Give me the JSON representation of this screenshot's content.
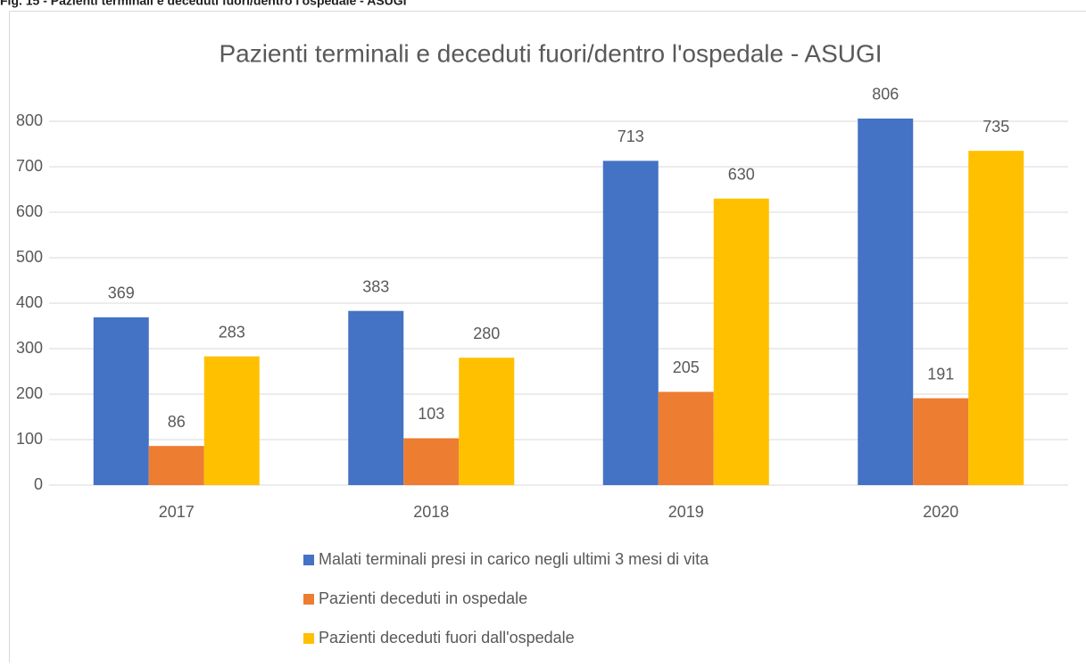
{
  "caption": "Fig. 15 - Pazienti terminali e deceduti fuori/dentro l'ospedale - ASUGI",
  "chart_data": {
    "type": "bar",
    "title": "Pazienti terminali e deceduti fuori/dentro l'ospedale - ASUGI",
    "categories": [
      "2017",
      "2018",
      "2019",
      "2020"
    ],
    "series": [
      {
        "name": "Malati terminali presi in carico negli ultimi 3 mesi di vita",
        "color": "#4472c4",
        "values": [
          369,
          383,
          713,
          806
        ]
      },
      {
        "name": "Pazienti deceduti in ospedale",
        "color": "#ed7d31",
        "values": [
          86,
          103,
          205,
          191
        ]
      },
      {
        "name": "Pazienti deceduti fuori dall'ospedale",
        "color": "#ffc000",
        "values": [
          283,
          280,
          630,
          735
        ]
      }
    ],
    "ylim": [
      0,
      800
    ],
    "yticks": [
      0,
      100,
      200,
      300,
      400,
      500,
      600,
      700,
      800
    ],
    "grid": true,
    "legend": "bottom"
  }
}
